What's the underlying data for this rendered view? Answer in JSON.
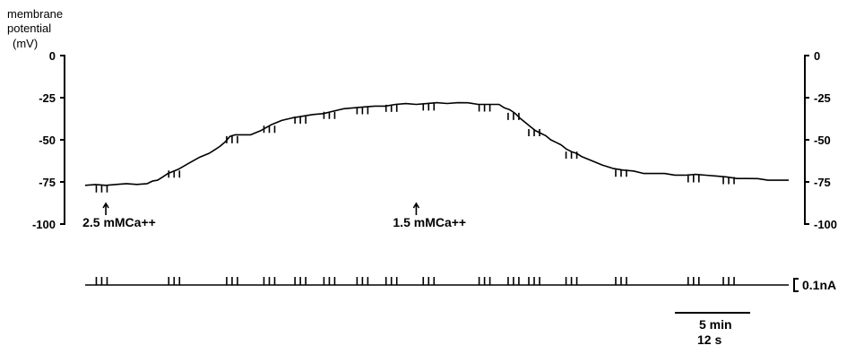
{
  "chart_data": {
    "type": "line",
    "ylabel_lines": [
      "membrane",
      "potential",
      "(mV)"
    ],
    "y_ticks": [
      "0",
      "-25",
      "-50",
      "-75",
      "-100"
    ],
    "ylim": [
      -100,
      0
    ],
    "time_scale": [
      0,
      34
    ],
    "series": [
      {
        "x": [
          0,
          1,
          2,
          3,
          3.5,
          4,
          5,
          6,
          6.5,
          7,
          7.5,
          8,
          9,
          10,
          11,
          12,
          13,
          14,
          15,
          16,
          17,
          18,
          19,
          20,
          20.5,
          21,
          21.5,
          22,
          22.5,
          23,
          23.5,
          24,
          25,
          26,
          27,
          28,
          29,
          30,
          31,
          32,
          33,
          34
        ],
        "y": [
          -77,
          -77,
          -76,
          -76,
          -74,
          -70,
          -64,
          -58,
          -54,
          -48,
          -47,
          -47,
          -41,
          -37,
          -35,
          -33,
          -31,
          -30,
          -29,
          -29,
          -28,
          -28,
          -29,
          -29,
          -32,
          -37,
          -42,
          -46,
          -50,
          -53,
          -57,
          -60,
          -65,
          -68,
          -70,
          -70,
          -71,
          -71,
          -72,
          -73,
          -74,
          -74
        ]
      }
    ],
    "pulse_train_times": [
      0.8,
      4.3,
      7.1,
      8.9,
      10.4,
      11.8,
      13.4,
      14.8,
      16.6,
      19.3,
      20.7,
      21.7,
      23.5,
      25.9,
      29.4,
      31.1
    ],
    "annotations": [
      {
        "text": "2.5 mMCa++",
        "time": 1.0
      },
      {
        "text": "1.5 mMCa++",
        "time": 16.0
      }
    ],
    "current_scale_label": "0.1nA",
    "time_scale_label": "5 min",
    "time_scale_sublabel": "12 s"
  }
}
